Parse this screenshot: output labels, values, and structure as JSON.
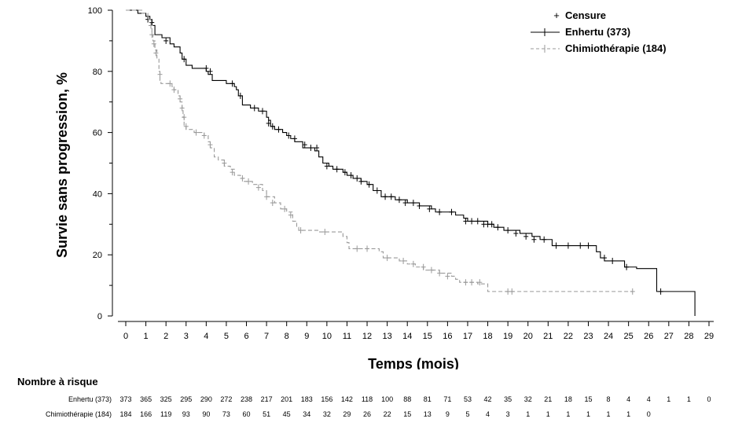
{
  "chart_data": {
    "type": "line",
    "subtype": "kaplan-meier step curve",
    "ylabel": "Survie sans progression, %",
    "xlabel": "Temps (mois)",
    "xlim": [
      0,
      29
    ],
    "ylim": [
      0,
      100
    ],
    "x_ticks": [
      "0",
      "1",
      "2",
      "3",
      "4",
      "5",
      "6",
      "7",
      "8",
      "9",
      "10",
      "11",
      "12",
      "13",
      "14",
      "15",
      "16",
      "17",
      "18",
      "19",
      "20",
      "21",
      "22",
      "23",
      "24",
      "25",
      "26",
      "27",
      "28",
      "29"
    ],
    "y_ticks": [
      "0",
      "20",
      "40",
      "60",
      "80",
      "100"
    ],
    "grid": false,
    "legend_position": "top-right",
    "legend": {
      "censor_label": "Censure",
      "censor_marker": "+"
    },
    "series": [
      {
        "name": "Enhertu (373)",
        "color": "#000000",
        "line_style": "solid",
        "steps": [
          [
            0,
            100
          ],
          [
            0.6,
            99
          ],
          [
            1.0,
            98
          ],
          [
            1.2,
            97
          ],
          [
            1.3,
            95
          ],
          [
            1.45,
            92
          ],
          [
            1.8,
            91
          ],
          [
            2.2,
            89
          ],
          [
            2.4,
            88
          ],
          [
            2.7,
            86
          ],
          [
            2.8,
            84
          ],
          [
            3.0,
            82
          ],
          [
            3.3,
            81
          ],
          [
            4.0,
            80
          ],
          [
            4.1,
            79
          ],
          [
            4.3,
            77
          ],
          [
            5.0,
            76
          ],
          [
            5.4,
            75
          ],
          [
            5.5,
            74
          ],
          [
            5.6,
            72
          ],
          [
            5.8,
            69
          ],
          [
            6.2,
            68
          ],
          [
            6.6,
            67
          ],
          [
            7.0,
            65
          ],
          [
            7.1,
            64
          ],
          [
            7.2,
            62
          ],
          [
            7.4,
            61
          ],
          [
            7.8,
            60
          ],
          [
            8.0,
            59
          ],
          [
            8.2,
            58
          ],
          [
            8.4,
            57
          ],
          [
            8.8,
            55
          ],
          [
            9.4,
            54
          ],
          [
            9.6,
            52
          ],
          [
            9.8,
            50
          ],
          [
            10.1,
            49
          ],
          [
            10.3,
            48
          ],
          [
            10.8,
            47
          ],
          [
            11.0,
            46
          ],
          [
            11.3,
            45
          ],
          [
            11.7,
            44
          ],
          [
            12.0,
            43
          ],
          [
            12.3,
            41
          ],
          [
            12.7,
            39
          ],
          [
            13.4,
            38
          ],
          [
            14.0,
            37
          ],
          [
            14.6,
            36
          ],
          [
            15.2,
            35
          ],
          [
            15.4,
            34
          ],
          [
            16.4,
            33
          ],
          [
            16.8,
            32
          ],
          [
            17.0,
            31
          ],
          [
            18.0,
            30
          ],
          [
            18.3,
            29
          ],
          [
            18.8,
            28
          ],
          [
            19.6,
            27
          ],
          [
            20.2,
            26
          ],
          [
            20.6,
            25
          ],
          [
            21.2,
            23
          ],
          [
            23.4,
            21
          ],
          [
            23.6,
            19
          ],
          [
            23.8,
            18
          ],
          [
            24.8,
            16
          ],
          [
            25.4,
            15.5
          ],
          [
            26.4,
            8
          ],
          [
            28.3,
            0
          ]
        ],
        "censors": [
          [
            1.1,
            97
          ],
          [
            1.3,
            96
          ],
          [
            2.0,
            90
          ],
          [
            2.9,
            84
          ],
          [
            4.0,
            81
          ],
          [
            4.2,
            80
          ],
          [
            5.3,
            76
          ],
          [
            5.7,
            72
          ],
          [
            6.4,
            68
          ],
          [
            6.8,
            67
          ],
          [
            7.1,
            63
          ],
          [
            7.3,
            62
          ],
          [
            7.6,
            61
          ],
          [
            8.1,
            59
          ],
          [
            8.4,
            58
          ],
          [
            8.9,
            56
          ],
          [
            9.2,
            55
          ],
          [
            9.5,
            55
          ],
          [
            10.0,
            49
          ],
          [
            10.5,
            48
          ],
          [
            10.9,
            47
          ],
          [
            11.2,
            46
          ],
          [
            11.5,
            45
          ],
          [
            11.7,
            44
          ],
          [
            12.1,
            43
          ],
          [
            12.5,
            41
          ],
          [
            12.9,
            39
          ],
          [
            13.2,
            39
          ],
          [
            13.6,
            38
          ],
          [
            13.9,
            37
          ],
          [
            14.3,
            37
          ],
          [
            14.6,
            36
          ],
          [
            15.1,
            35
          ],
          [
            15.6,
            34
          ],
          [
            16.2,
            34
          ],
          [
            16.9,
            31
          ],
          [
            17.2,
            31
          ],
          [
            17.5,
            31
          ],
          [
            17.8,
            30
          ],
          [
            18.0,
            30
          ],
          [
            18.2,
            30
          ],
          [
            18.5,
            29
          ],
          [
            19.0,
            28
          ],
          [
            19.4,
            27
          ],
          [
            19.9,
            26
          ],
          [
            20.3,
            25
          ],
          [
            20.8,
            25
          ],
          [
            21.4,
            23
          ],
          [
            22.0,
            23
          ],
          [
            22.6,
            23
          ],
          [
            23.0,
            23
          ],
          [
            23.8,
            19
          ],
          [
            24.2,
            18
          ],
          [
            24.9,
            16
          ],
          [
            26.6,
            8
          ]
        ]
      },
      {
        "name": "Chimiothérapie (184)",
        "color": "#999999",
        "line_style": "dashed",
        "steps": [
          [
            0,
            100
          ],
          [
            0.8,
            99
          ],
          [
            1.1,
            97
          ],
          [
            1.25,
            95
          ],
          [
            1.3,
            92
          ],
          [
            1.35,
            90
          ],
          [
            1.45,
            87
          ],
          [
            1.55,
            84
          ],
          [
            1.65,
            80
          ],
          [
            1.7,
            77
          ],
          [
            1.75,
            76
          ],
          [
            2.3,
            75
          ],
          [
            2.4,
            74
          ],
          [
            2.6,
            72
          ],
          [
            2.7,
            70
          ],
          [
            2.8,
            68
          ],
          [
            2.85,
            65
          ],
          [
            2.9,
            62
          ],
          [
            3.0,
            61
          ],
          [
            3.4,
            60
          ],
          [
            3.9,
            59
          ],
          [
            4.1,
            57
          ],
          [
            4.2,
            55
          ],
          [
            4.4,
            52
          ],
          [
            4.6,
            51
          ],
          [
            4.9,
            49
          ],
          [
            5.2,
            48
          ],
          [
            5.4,
            46
          ],
          [
            5.7,
            45
          ],
          [
            5.9,
            44
          ],
          [
            6.3,
            43
          ],
          [
            6.8,
            41
          ],
          [
            7.0,
            39
          ],
          [
            7.4,
            37
          ],
          [
            7.7,
            35
          ],
          [
            8.0,
            34
          ],
          [
            8.3,
            31
          ],
          [
            8.5,
            29
          ],
          [
            8.6,
            28
          ],
          [
            9.6,
            27.5
          ],
          [
            10.8,
            26
          ],
          [
            11.0,
            24
          ],
          [
            11.1,
            22
          ],
          [
            12.6,
            21
          ],
          [
            12.8,
            19
          ],
          [
            13.6,
            18
          ],
          [
            14.0,
            17
          ],
          [
            14.4,
            16
          ],
          [
            14.8,
            15
          ],
          [
            15.6,
            14
          ],
          [
            16.2,
            13
          ],
          [
            16.4,
            12
          ],
          [
            16.6,
            11
          ],
          [
            17.5,
            10.5
          ],
          [
            18.0,
            8
          ],
          [
            25.2,
            8
          ]
        ],
        "censors": [
          [
            1.25,
            95
          ],
          [
            1.3,
            92
          ],
          [
            1.4,
            89
          ],
          [
            1.5,
            86
          ],
          [
            1.7,
            79
          ],
          [
            2.2,
            76
          ],
          [
            2.4,
            74
          ],
          [
            2.7,
            71
          ],
          [
            2.8,
            68
          ],
          [
            2.9,
            65
          ],
          [
            3.0,
            62
          ],
          [
            3.5,
            60
          ],
          [
            3.9,
            59
          ],
          [
            4.2,
            56
          ],
          [
            4.9,
            50
          ],
          [
            5.3,
            47
          ],
          [
            5.8,
            45
          ],
          [
            6.1,
            44
          ],
          [
            6.6,
            42
          ],
          [
            7.0,
            39
          ],
          [
            7.3,
            37
          ],
          [
            7.9,
            35
          ],
          [
            8.2,
            33
          ],
          [
            8.7,
            28
          ],
          [
            9.9,
            27.5
          ],
          [
            11.5,
            22
          ],
          [
            12.0,
            22
          ],
          [
            13.0,
            19
          ],
          [
            13.8,
            18
          ],
          [
            14.3,
            17
          ],
          [
            14.8,
            16
          ],
          [
            15.2,
            15
          ],
          [
            15.6,
            14
          ],
          [
            16.0,
            13
          ],
          [
            16.9,
            11
          ],
          [
            17.2,
            11
          ],
          [
            17.6,
            11
          ],
          [
            19.0,
            8
          ],
          [
            19.2,
            8
          ],
          [
            25.2,
            8
          ]
        ]
      }
    ],
    "risk_table": {
      "title": "Nombre à risque",
      "rows": [
        {
          "label": "Enhertu (373)",
          "values": [
            "373",
            "365",
            "325",
            "295",
            "290",
            "272",
            "238",
            "217",
            "201",
            "183",
            "156",
            "142",
            "118",
            "100",
            "88",
            "81",
            "71",
            "53",
            "42",
            "35",
            "32",
            "21",
            "18",
            "15",
            "8",
            "4",
            "4",
            "1",
            "1",
            "0"
          ]
        },
        {
          "label": "Chimiothérapie (184)",
          "values": [
            "184",
            "166",
            "119",
            "93",
            "90",
            "73",
            "60",
            "51",
            "45",
            "34",
            "32",
            "29",
            "26",
            "22",
            "15",
            "13",
            "9",
            "5",
            "4",
            "3",
            "1",
            "1",
            "1",
            "1",
            "1",
            "1",
            "0"
          ]
        }
      ]
    }
  }
}
